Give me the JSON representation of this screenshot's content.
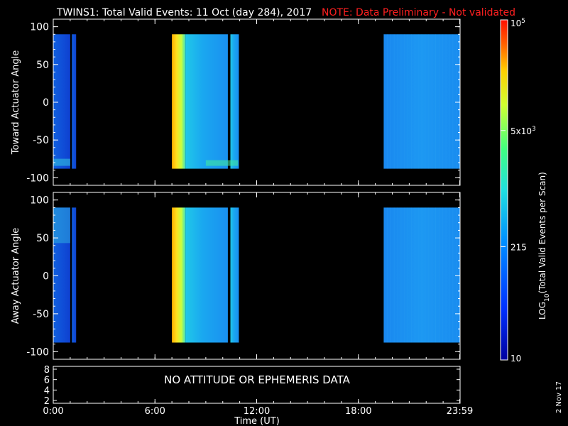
{
  "title": "TWINS1: Total Valid Events: 11 Oct (day 284), 2017",
  "note": "NOTE: Data Preliminary - Not validated",
  "colors": {
    "background": "#000000",
    "text": "#ffffff",
    "note": "#ff2020"
  },
  "colorbar": {
    "label_main": "LOG",
    "label_sub": "10",
    "label_rest": "(Total Valid Events per Scan)",
    "ticks": [
      {
        "base": "10",
        "exp": "5",
        "value": 100000
      },
      {
        "base": "5x10",
        "exp": "3",
        "value": 5000
      },
      {
        "base": "215",
        "exp": "",
        "value": 215
      },
      {
        "base": "10",
        "exp": "",
        "value": 10
      }
    ],
    "range": [
      10,
      100000
    ],
    "scale": "log",
    "colormap": "rainbow"
  },
  "date_stamp": "2 Nov 17",
  "bottom_panel": {
    "message": "NO ATTITUDE OR EPHEMERIS DATA",
    "y_ticks": [
      "8",
      "6",
      "4",
      "2"
    ]
  },
  "chart_data": [
    {
      "type": "heatmap",
      "ylabel": "Toward Actuator Angle",
      "ylim": [
        -110,
        110
      ],
      "y_ticks": [
        "100",
        "50",
        "0",
        "-50",
        "-100"
      ],
      "y_tick_values": [
        100,
        50,
        0,
        -50,
        -100
      ],
      "y_data_range": [
        -88,
        90
      ],
      "x_ticks": [
        "0:00",
        "6:00",
        "12:00",
        "18:00",
        "23:59"
      ],
      "x_tick_values": [
        0,
        6,
        12,
        18,
        23.98
      ],
      "xlabel": "Time (UT)",
      "x_range_hours": [
        0,
        24
      ],
      "data_blocks_hours": [
        {
          "start": 0.0,
          "end": 1.0,
          "level": 0.2
        },
        {
          "start": 1.1,
          "end": 1.35,
          "level": 0.25
        },
        {
          "start": 7.0,
          "end": 7.8,
          "level": 0.78
        },
        {
          "start": 7.8,
          "end": 10.3,
          "level": 0.42
        },
        {
          "start": 10.45,
          "end": 10.95,
          "level": 0.4
        },
        {
          "start": 19.5,
          "end": 23.98,
          "level": 0.3
        }
      ]
    },
    {
      "type": "heatmap",
      "ylabel": "Away Actuator Angle",
      "ylim": [
        -110,
        110
      ],
      "y_ticks": [
        "100",
        "50",
        "0",
        "-50",
        "-100"
      ],
      "y_tick_values": [
        100,
        50,
        0,
        -50,
        -100
      ],
      "y_data_range": [
        -88,
        90
      ],
      "x_ticks": [
        "0:00",
        "6:00",
        "12:00",
        "18:00",
        "23:59"
      ],
      "x_tick_values": [
        0,
        6,
        12,
        18,
        23.98
      ],
      "xlabel": "Time (UT)",
      "x_range_hours": [
        0,
        24
      ],
      "data_blocks_hours": [
        {
          "start": 0.0,
          "end": 1.0,
          "level": 0.28
        },
        {
          "start": 1.1,
          "end": 1.35,
          "level": 0.28
        },
        {
          "start": 7.0,
          "end": 7.8,
          "level": 0.8
        },
        {
          "start": 7.8,
          "end": 10.3,
          "level": 0.48
        },
        {
          "start": 10.45,
          "end": 10.95,
          "level": 0.4
        },
        {
          "start": 19.5,
          "end": 23.98,
          "level": 0.33
        }
      ]
    }
  ]
}
